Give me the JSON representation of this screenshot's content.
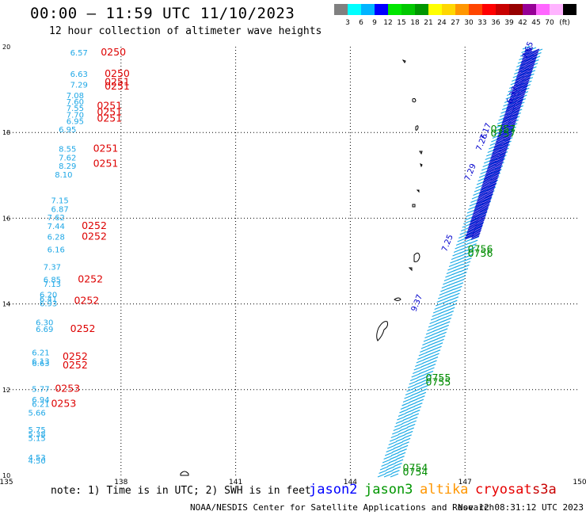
{
  "header": {
    "title": "00:00 – 11:59 UTC 11/10/2023",
    "subtitle": "12 hour collection of altimeter wave heights"
  },
  "colorbar": {
    "colors": [
      "#808080",
      "#00ffff",
      "#00b4ff",
      "#0000ff",
      "#00e600",
      "#00c800",
      "#009600",
      "#ffff00",
      "#ffd700",
      "#ff9600",
      "#ff4500",
      "#ff0000",
      "#c80000",
      "#960000",
      "#960096",
      "#ff66ff",
      "#ffb4ff",
      "#000000"
    ],
    "labels": [
      "3",
      "6",
      "9",
      "12",
      "15",
      "18",
      "21",
      "24",
      "27",
      "30",
      "33",
      "36",
      "39",
      "42",
      "45",
      "70"
    ],
    "unit": "(ft)"
  },
  "map": {
    "x_ticks": [
      "135",
      "138",
      "141",
      "144",
      "147",
      "150"
    ],
    "y_ticks": [
      "10",
      "12",
      "14",
      "16",
      "18",
      "20"
    ],
    "lon_range": [
      135,
      150
    ],
    "lat_range": [
      10,
      20
    ]
  },
  "observations": {
    "left_swh_labels": [
      {
        "text": "6.57",
        "lon": 136.9,
        "lat": 19.8
      },
      {
        "text": "6.63",
        "lon": 136.9,
        "lat": 19.3
      },
      {
        "text": "7.29",
        "lon": 136.9,
        "lat": 19.05
      },
      {
        "text": "7.08",
        "lon": 136.8,
        "lat": 18.8
      },
      {
        "text": "7.60",
        "lon": 136.8,
        "lat": 18.65
      },
      {
        "text": "7.55",
        "lon": 136.8,
        "lat": 18.5
      },
      {
        "text": "7.70",
        "lon": 136.8,
        "lat": 18.35
      },
      {
        "text": "6.95",
        "lon": 136.8,
        "lat": 18.2
      },
      {
        "text": "6.95",
        "lon": 136.6,
        "lat": 18.0
      },
      {
        "text": "8.55",
        "lon": 136.6,
        "lat": 17.55
      },
      {
        "text": "7.62",
        "lon": 136.6,
        "lat": 17.35
      },
      {
        "text": "8.29",
        "lon": 136.6,
        "lat": 17.15
      },
      {
        "text": "8.10",
        "lon": 136.5,
        "lat": 16.95
      },
      {
        "text": "7.15",
        "lon": 136.4,
        "lat": 16.35
      },
      {
        "text": "6.87",
        "lon": 136.4,
        "lat": 16.15
      },
      {
        "text": "7.62",
        "lon": 136.3,
        "lat": 15.95
      },
      {
        "text": "7.44",
        "lon": 136.3,
        "lat": 15.75
      },
      {
        "text": "6.28",
        "lon": 136.3,
        "lat": 15.5
      },
      {
        "text": "6.16",
        "lon": 136.3,
        "lat": 15.2
      },
      {
        "text": "7.37",
        "lon": 136.2,
        "lat": 14.8
      },
      {
        "text": "6.85",
        "lon": 136.2,
        "lat": 14.5
      },
      {
        "text": "7.13",
        "lon": 136.2,
        "lat": 14.4
      },
      {
        "text": "6.20",
        "lon": 136.1,
        "lat": 14.15
      },
      {
        "text": "6.41",
        "lon": 136.1,
        "lat": 14.05
      },
      {
        "text": "6.93",
        "lon": 136.1,
        "lat": 13.95
      },
      {
        "text": "6.30",
        "lon": 136.0,
        "lat": 13.5
      },
      {
        "text": "6.69",
        "lon": 136.0,
        "lat": 13.35
      },
      {
        "text": "6.21",
        "lon": 135.9,
        "lat": 12.8
      },
      {
        "text": "6.13",
        "lon": 135.9,
        "lat": 12.6
      },
      {
        "text": "6.63",
        "lon": 135.9,
        "lat": 12.55
      },
      {
        "text": "5.77",
        "lon": 135.9,
        "lat": 11.95
      },
      {
        "text": "6.94",
        "lon": 135.9,
        "lat": 11.7
      },
      {
        "text": "6.21",
        "lon": 135.9,
        "lat": 11.6
      },
      {
        "text": "5.66",
        "lon": 135.8,
        "lat": 11.4
      },
      {
        "text": "5.75",
        "lon": 135.8,
        "lat": 11.0
      },
      {
        "text": "5.38",
        "lon": 135.8,
        "lat": 10.9
      },
      {
        "text": "5.15",
        "lon": 135.8,
        "lat": 10.8
      },
      {
        "text": "4.53",
        "lon": 135.8,
        "lat": 10.35
      },
      {
        "text": "4.50",
        "lon": 135.8,
        "lat": 10.28
      }
    ],
    "left_time_labels": [
      {
        "text": "0250",
        "lon": 137.8,
        "lat": 19.8
      },
      {
        "text": "0250",
        "lon": 137.9,
        "lat": 19.3
      },
      {
        "text": "0251",
        "lon": 137.9,
        "lat": 19.1
      },
      {
        "text": "0251",
        "lon": 137.9,
        "lat": 19.0
      },
      {
        "text": "0251",
        "lon": 137.7,
        "lat": 18.55
      },
      {
        "text": "0251",
        "lon": 137.7,
        "lat": 18.4
      },
      {
        "text": "0251",
        "lon": 137.7,
        "lat": 18.25
      },
      {
        "text": "0251",
        "lon": 137.6,
        "lat": 17.55
      },
      {
        "text": "0251",
        "lon": 137.6,
        "lat": 17.2
      },
      {
        "text": "0252",
        "lon": 137.3,
        "lat": 15.75
      },
      {
        "text": "0252",
        "lon": 137.3,
        "lat": 15.5
      },
      {
        "text": "0252",
        "lon": 137.2,
        "lat": 14.5
      },
      {
        "text": "0252",
        "lon": 137.1,
        "lat": 14.0
      },
      {
        "text": "0252",
        "lon": 137.0,
        "lat": 13.35
      },
      {
        "text": "0252",
        "lon": 136.8,
        "lat": 12.7
      },
      {
        "text": "0252",
        "lon": 136.8,
        "lat": 12.5
      },
      {
        "text": "0253",
        "lon": 136.6,
        "lat": 11.95
      },
      {
        "text": "0253",
        "lon": 136.5,
        "lat": 11.6
      }
    ],
    "right_track_values": [
      {
        "text": "7.65",
        "lon": 148.7,
        "lat": 19.9
      },
      {
        "text": "6.37",
        "lon": 148.3,
        "lat": 18.85
      },
      {
        "text": "7.17",
        "lon": 147.6,
        "lat": 18.0
      },
      {
        "text": "7.26",
        "lon": 147.5,
        "lat": 17.75
      },
      {
        "text": "7.29",
        "lon": 147.2,
        "lat": 17.05
      },
      {
        "text": "7.25",
        "lon": 146.6,
        "lat": 15.4
      },
      {
        "text": "9.37",
        "lon": 145.8,
        "lat": 14.0
      }
    ],
    "right_time_labels": [
      {
        "text": "0757",
        "lon": 148.0,
        "lat": 18.0
      },
      {
        "text": "0757",
        "lon": 148.0,
        "lat": 17.9
      },
      {
        "text": "0756",
        "lon": 147.4,
        "lat": 15.2
      },
      {
        "text": "0756",
        "lon": 147.4,
        "lat": 15.1
      },
      {
        "text": "0755",
        "lon": 146.3,
        "lat": 12.2
      },
      {
        "text": "0755",
        "lon": 146.3,
        "lat": 12.1
      },
      {
        "text": "0754",
        "lon": 145.7,
        "lat": 10.1
      },
      {
        "text": "0754",
        "lon": 145.7,
        "lat": 10.0
      }
    ]
  },
  "footer": {
    "note": "note:  1)  Time is in UTC;  2)  SWH is in feet",
    "legend": [
      {
        "label": "jason2",
        "color": "#0000ff"
      },
      {
        "label": "jason3",
        "color": "#009600"
      },
      {
        "label": "altika",
        "color": "#ff9600"
      },
      {
        "label": "cryosat",
        "color": "#e60000"
      },
      {
        "label": "s3a",
        "color": "#c80000"
      }
    ],
    "credit": "NOAA/NESDIS Center for Satellite Applications and Research",
    "timestamp": "Nov 12 08:31:12 UTC 2023"
  }
}
